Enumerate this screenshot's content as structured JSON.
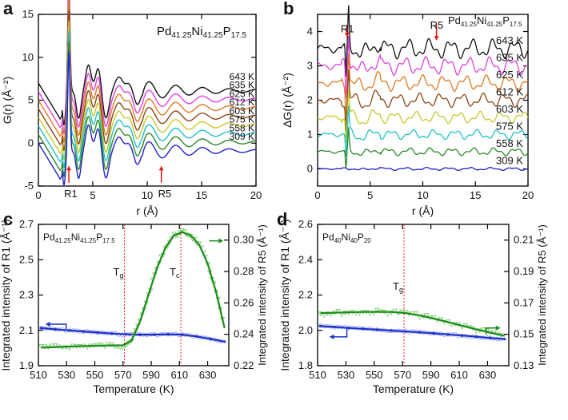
{
  "panels": {
    "a": {
      "letter": "a"
    },
    "b": {
      "letter": "b"
    },
    "c": {
      "letter": "c"
    },
    "d": {
      "letter": "d"
    }
  },
  "chart_data": [
    {
      "panel": "a",
      "type": "line",
      "title": "",
      "composition": {
        "base": "Pd",
        "sub1": "41.25",
        "el2": "Ni",
        "sub2": "41.25",
        "el3": "P",
        "sub3": "17.5"
      },
      "xlabel": "r (Å)",
      "ylabel": "G(r) (Å⁻²)",
      "xlim": [
        0,
        20
      ],
      "ylim": [
        -5,
        15
      ],
      "xticks": [
        0,
        5,
        10,
        15,
        20
      ],
      "yticks": [
        -5,
        0,
        5,
        10,
        15
      ],
      "series": [
        {
          "name": "643 K",
          "color": "#111111",
          "offset": 7.0
        },
        {
          "name": "635 K",
          "color": "#e040e0",
          "offset": 6.0
        },
        {
          "name": "625 K",
          "color": "#e07a20",
          "offset": 5.0
        },
        {
          "name": "612 K",
          "color": "#8b4513",
          "offset": 4.0
        },
        {
          "name": "603 K",
          "color": "#c8c82a",
          "offset": 3.0
        },
        {
          "name": "575 K",
          "color": "#20c0c8",
          "offset": 2.0
        },
        {
          "name": "558 K",
          "color": "#2a8a2a",
          "offset": 1.0
        },
        {
          "name": "309 K",
          "color": "#2020d0",
          "offset": 0.0
        }
      ],
      "annotations": [
        {
          "text": "R1",
          "x": 2.8
        },
        {
          "text": "R5",
          "x": 11.3
        }
      ]
    },
    {
      "panel": "b",
      "type": "line",
      "title": "",
      "composition": {
        "base": "Pd",
        "sub1": "41.25",
        "el2": "Ni",
        "sub2": "41.25",
        "el3": "P",
        "sub3": "17.5"
      },
      "xlabel": "r (Å)",
      "ylabel": "ΔG(r) (Å⁻²)",
      "xlim": [
        0,
        20
      ],
      "ylim": [
        -0.5,
        4.5
      ],
      "xticks": [
        0,
        5,
        10,
        15,
        20
      ],
      "yticks": [
        0,
        1,
        2,
        3,
        4
      ],
      "series": [
        {
          "name": "643 K",
          "color": "#111111",
          "offset": 3.5
        },
        {
          "name": "635 K",
          "color": "#e040e0",
          "offset": 3.0
        },
        {
          "name": "625 K",
          "color": "#e07a20",
          "offset": 2.5
        },
        {
          "name": "612 K",
          "color": "#8b4513",
          "offset": 2.0
        },
        {
          "name": "603 K",
          "color": "#c8c82a",
          "offset": 1.5
        },
        {
          "name": "575 K",
          "color": "#20c0c8",
          "offset": 1.0
        },
        {
          "name": "558 K",
          "color": "#2a8a2a",
          "offset": 0.5
        },
        {
          "name": "309 K",
          "color": "#2020d0",
          "offset": 0.0
        }
      ],
      "annotations": [
        {
          "text": "R1",
          "x": 2.8
        },
        {
          "text": "R5",
          "x": 11.3
        }
      ]
    },
    {
      "panel": "c",
      "type": "scatter",
      "title": "",
      "composition": {
        "base": "Pd",
        "sub1": "41.25",
        "el2": "Ni",
        "sub2": "41.25",
        "el3": "P",
        "sub3": "17.5"
      },
      "xlabel": "Temperature (K)",
      "ylabel": "Integrated intensity of R1 (Å⁻¹)",
      "y2label": "Integrated intensity of R5 (Å⁻¹)",
      "xlim": [
        510,
        645
      ],
      "ylim": [
        1.9,
        2.7
      ],
      "y2lim": [
        0.22,
        0.31
      ],
      "xticks": [
        510,
        530,
        550,
        570,
        590,
        610,
        630
      ],
      "yticks": [
        1.9,
        2.1,
        2.3,
        2.5,
        2.7
      ],
      "y2ticks": [
        0.22,
        0.24,
        0.26,
        0.28,
        0.3
      ],
      "vlines": [
        {
          "label": "T",
          "sub": "g",
          "x": 571
        },
        {
          "label": "T",
          "sub": "c",
          "x": 611
        }
      ],
      "series": [
        {
          "name": "R1",
          "axis": "left",
          "color": "#2030c8",
          "x": [
            512,
            522,
            532,
            542,
            552,
            562,
            572,
            582,
            592,
            602,
            612,
            622,
            632,
            642
          ],
          "y": [
            2.113,
            2.106,
            2.1,
            2.094,
            2.088,
            2.082,
            2.078,
            2.076,
            2.076,
            2.078,
            2.076,
            2.066,
            2.052,
            2.036
          ]
        },
        {
          "name": "R5",
          "axis": "right",
          "color": "#1a8a1a",
          "x": [
            512,
            522,
            532,
            542,
            552,
            562,
            570,
            576,
            582,
            588,
            594,
            600,
            606,
            612,
            618,
            624,
            630,
            636,
            642
          ],
          "y": [
            0.2315,
            0.2318,
            0.2322,
            0.2325,
            0.2327,
            0.2329,
            0.233,
            0.236,
            0.248,
            0.265,
            0.282,
            0.295,
            0.303,
            0.305,
            0.303,
            0.297,
            0.285,
            0.267,
            0.244
          ]
        }
      ]
    },
    {
      "panel": "d",
      "type": "scatter",
      "title": "",
      "composition": {
        "base": "Pd",
        "sub1": "40",
        "el2": "Ni",
        "sub2": "40",
        "el3": "P",
        "sub3": "20"
      },
      "xlabel": "Temperature (K)",
      "ylabel": "Integrated intensity of R1 (Å⁻¹)",
      "y2label": "Integrated intensity of R5 (Å⁻¹)",
      "xlim": [
        510,
        645
      ],
      "ylim": [
        1.8,
        2.6
      ],
      "y2lim": [
        0.13,
        0.22
      ],
      "xticks": [
        510,
        530,
        550,
        570,
        590,
        610,
        630
      ],
      "yticks": [
        1.8,
        2.0,
        2.2,
        2.4,
        2.6
      ],
      "y2ticks": [
        0.13,
        0.15,
        0.17,
        0.19,
        0.21
      ],
      "vlines": [
        {
          "label": "T",
          "sub": "g",
          "x": 571
        }
      ],
      "series": [
        {
          "name": "R1",
          "axis": "left",
          "color": "#2030c8",
          "x": [
            512,
            522,
            532,
            542,
            552,
            562,
            572,
            582,
            592,
            602,
            612,
            622,
            632,
            642
          ],
          "y": [
            2.024,
            2.019,
            2.014,
            2.009,
            2.004,
            1.999,
            1.994,
            1.989,
            1.983,
            1.977,
            1.971,
            1.964,
            1.957,
            1.951
          ]
        },
        {
          "name": "R5",
          "axis": "right",
          "color": "#1a8a1a",
          "x": [
            512,
            522,
            532,
            542,
            552,
            562,
            572,
            582,
            592,
            602,
            612,
            622,
            632,
            642
          ],
          "y": [
            0.1635,
            0.1637,
            0.164,
            0.1642,
            0.1643,
            0.1642,
            0.1635,
            0.162,
            0.16,
            0.1578,
            0.1555,
            0.1532,
            0.151,
            0.149
          ]
        }
      ]
    }
  ]
}
